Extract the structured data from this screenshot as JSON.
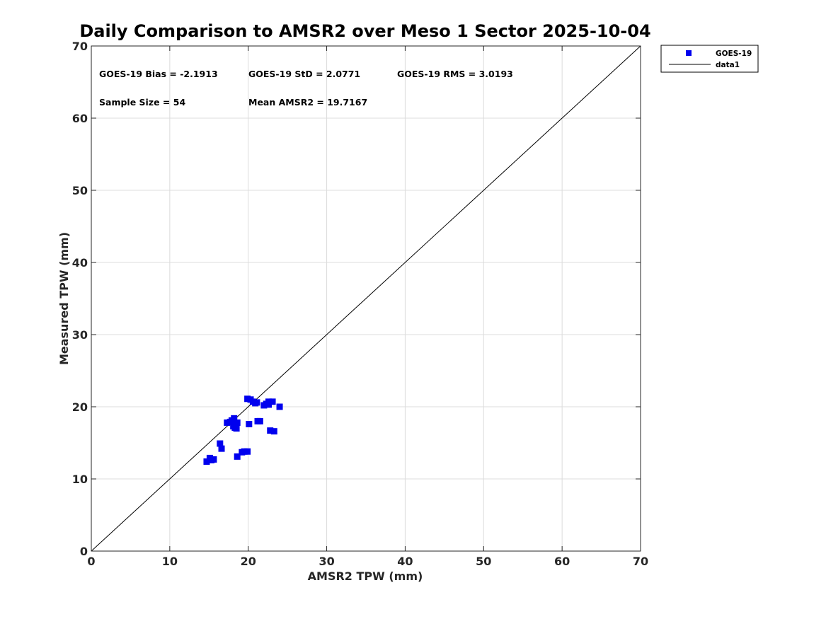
{
  "chart_data": {
    "type": "scatter",
    "title": "Daily Comparison to AMSR2 over Meso 1 Sector 2025-10-04",
    "xlabel": "AMSR2 TPW (mm)",
    "ylabel": "Measured TPW (mm)",
    "xlim": [
      0,
      70
    ],
    "ylim": [
      0,
      70
    ],
    "xticks": [
      0,
      10,
      20,
      30,
      40,
      50,
      60,
      70
    ],
    "yticks": [
      0,
      10,
      20,
      30,
      40,
      50,
      60,
      70
    ],
    "grid": true,
    "legend_position": "outside-top-right",
    "series": [
      {
        "name": "GOES-19",
        "kind": "marker",
        "marker": "square",
        "color": "#0000ee",
        "points": [
          [
            14.7,
            12.4
          ],
          [
            15.1,
            12.9
          ],
          [
            15.3,
            12.6
          ],
          [
            15.6,
            12.7
          ],
          [
            16.4,
            14.9
          ],
          [
            16.6,
            14.2
          ],
          [
            18.6,
            13.1
          ],
          [
            19.2,
            13.7
          ],
          [
            19.5,
            13.8
          ],
          [
            19.9,
            13.8
          ],
          [
            17.3,
            17.8
          ],
          [
            17.7,
            17.9
          ],
          [
            17.9,
            18.1
          ],
          [
            18.1,
            17.3
          ],
          [
            18.2,
            18.4
          ],
          [
            18.3,
            17.1
          ],
          [
            18.4,
            17.6
          ],
          [
            18.5,
            17.0
          ],
          [
            18.6,
            17.8
          ],
          [
            20.1,
            17.6
          ],
          [
            21.2,
            18.0
          ],
          [
            21.5,
            18.0
          ],
          [
            19.9,
            21.1
          ],
          [
            20.3,
            21.0
          ],
          [
            20.6,
            20.7
          ],
          [
            20.9,
            20.5
          ],
          [
            21.1,
            20.6
          ],
          [
            22.0,
            20.2
          ],
          [
            22.3,
            20.4
          ],
          [
            22.6,
            20.3
          ],
          [
            22.6,
            20.7
          ],
          [
            23.1,
            20.7
          ],
          [
            24.0,
            20.0
          ],
          [
            22.8,
            16.7
          ],
          [
            23.3,
            16.6
          ]
        ]
      },
      {
        "name": "data1",
        "kind": "line",
        "color": "#000000",
        "x": [
          0,
          70
        ],
        "y": [
          0,
          70
        ]
      }
    ],
    "annotations": [
      "GOES-19 Bias = -2.1913",
      "GOES-19 StD = 2.0771",
      "GOES-19 RMS = 3.0193",
      "Sample Size = 54",
      "Mean AMSR2 = 19.7167"
    ]
  }
}
